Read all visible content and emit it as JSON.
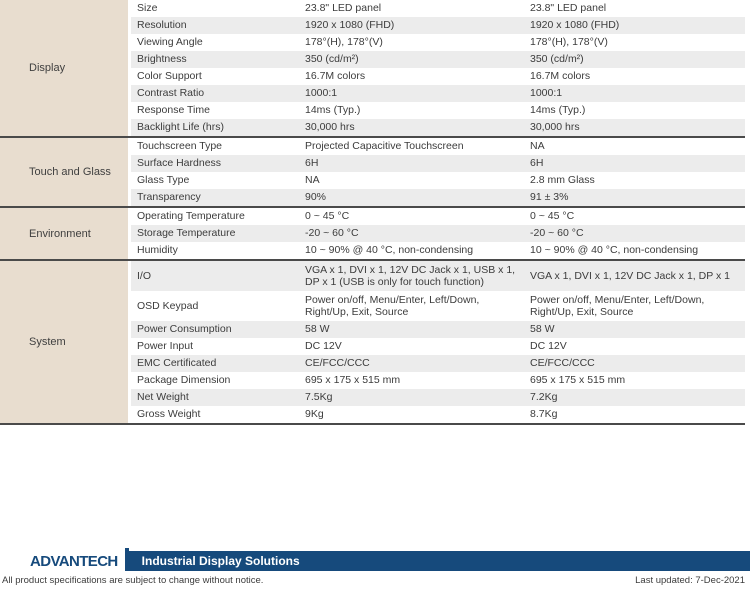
{
  "colors": {
    "accent_blue": "#164a7c",
    "category_bg": "#e8ddcf",
    "row_stripe": "#ececec",
    "separator": "#4a4a4a"
  },
  "table": {
    "sections": [
      {
        "category": "Display",
        "rows": [
          {
            "name": "Size",
            "col1": "23.8\" LED panel",
            "col2": "23.8\" LED panel"
          },
          {
            "name": "Resolution",
            "col1": "1920 x 1080 (FHD)",
            "col2": "1920 x 1080 (FHD)"
          },
          {
            "name": "Viewing Angle",
            "col1": "178°(H), 178°(V)",
            "col2": "178°(H), 178°(V)"
          },
          {
            "name": "Brightness",
            "col1": "350 (cd/m²)",
            "col2": "350 (cd/m²)"
          },
          {
            "name": "Color Support",
            "col1": "16.7M colors",
            "col2": "16.7M colors"
          },
          {
            "name": "Contrast Ratio",
            "col1": "1000:1",
            "col2": "1000:1"
          },
          {
            "name": "Response Time",
            "col1": "14ms (Typ.)",
            "col2": "14ms (Typ.)"
          },
          {
            "name": "Backlight Life (hrs)",
            "col1": "30,000 hrs",
            "col2": "30,000 hrs"
          }
        ]
      },
      {
        "category": "Touch and Glass",
        "rows": [
          {
            "name": "Touchscreen Type",
            "col1": "Projected Capacitive Touchscreen",
            "col2": "NA"
          },
          {
            "name": "Surface Hardness",
            "col1": "6H",
            "col2": "6H"
          },
          {
            "name": "Glass Type",
            "col1": "NA",
            "col2": "2.8 mm Glass"
          },
          {
            "name": "Transparency",
            "col1": "90%",
            "col2": "91 ± 3%"
          }
        ]
      },
      {
        "category": "Environment",
        "rows": [
          {
            "name": "Operating Temperature",
            "col1": "0 ~ 45 °C",
            "col2": "0 ~ 45 °C"
          },
          {
            "name": "Storage Temperature",
            "col1": "-20 ~  60 °C",
            "col2": "-20 ~  60 °C"
          },
          {
            "name": "Humidity",
            "col1": "10 ~ 90% @ 40 °C, non-condensing",
            "col2": "10 ~ 90% @ 40 °C, non-condensing"
          }
        ]
      },
      {
        "category": "System",
        "rows": [
          {
            "name": "I/O",
            "col1": "VGA x 1, DVI x 1, 12V DC Jack x 1, USB x 1,\nDP x 1 (USB is only for touch function)",
            "col2": "VGA x 1, DVI x 1, 12V DC Jack x 1, DP x 1"
          },
          {
            "name": "OSD Keypad",
            "col1": "Power on/off,  Menu/Enter, Left/Down,\nRight/Up, Exit, Source",
            "col2": "Power on/off,  Menu/Enter, Left/Down,\nRight/Up, Exit, Source"
          },
          {
            "name": "Power Consumption",
            "col1": "58 W",
            "col2": "58 W"
          },
          {
            "name": "Power Input",
            "col1": "DC 12V",
            "col2": "DC 12V"
          },
          {
            "name": "EMC Certificated",
            "col1": "CE/FCC/CCC",
            "col2": "CE/FCC/CCC"
          },
          {
            "name": "Package Dimension",
            "col1": "695 x 175 x 515 mm",
            "col2": "695 x 175 x 515 mm"
          },
          {
            "name": "Net Weight",
            "col1": "7.5Kg",
            "col2": "7.2Kg"
          },
          {
            "name": "Gross Weight",
            "col1": "9Kg",
            "col2": "8.7Kg"
          }
        ]
      }
    ]
  },
  "footer": {
    "brand": "ADVANTECH",
    "tagline": "Industrial Display Solutions",
    "note": "All product specifications are subject to change without notice.",
    "updated": "Last updated: 7-Dec-2021"
  }
}
